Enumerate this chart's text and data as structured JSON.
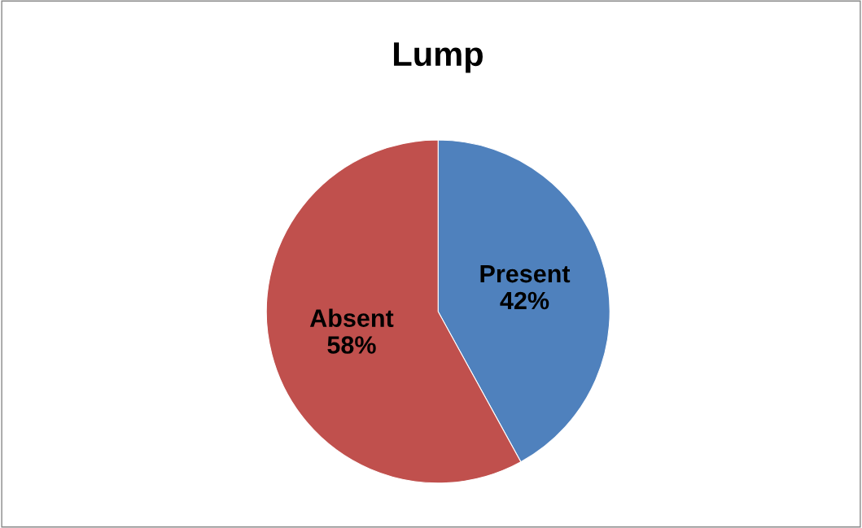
{
  "chart_data": {
    "type": "pie",
    "title": "Lump",
    "categories": [
      "Present",
      "Absent"
    ],
    "values": [
      42,
      58
    ],
    "value_labels": [
      "42%",
      "58%"
    ],
    "colors": [
      "#4f81bd",
      "#c0504d"
    ],
    "legend": false
  }
}
